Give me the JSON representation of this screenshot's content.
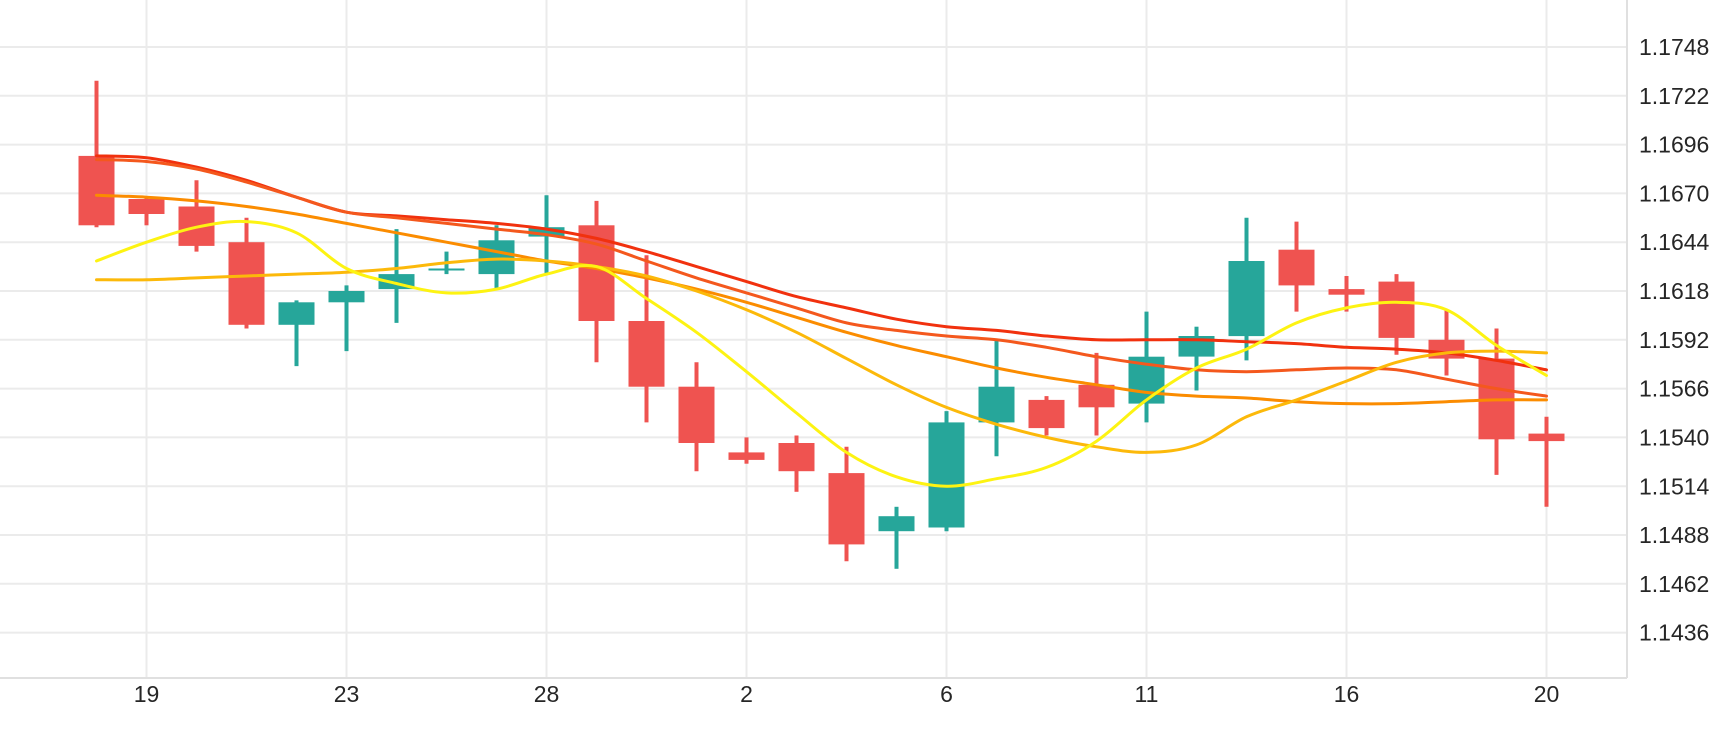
{
  "chart_data": {
    "type": "candlestick",
    "title": "",
    "xlabel": "",
    "ylabel": "",
    "grid": true,
    "legend": "none",
    "ylim": [
      1.1436,
      1.1748
    ],
    "y_axis": {
      "tick_labels": [
        "1.1748",
        "1.1722",
        "1.1696",
        "1.1670",
        "1.1644",
        "1.1618",
        "1.1592",
        "1.1566",
        "1.1540",
        "1.1514",
        "1.1488",
        "1.1462",
        "1.1436"
      ],
      "tick_prices": [
        1.1748,
        1.1722,
        1.1696,
        1.167,
        1.1644,
        1.1618,
        1.1592,
        1.1566,
        1.154,
        1.1514,
        1.1488,
        1.1462,
        1.1436
      ]
    },
    "x_axis": {
      "tick_labels": [
        "19",
        "23",
        "28",
        "2",
        "6",
        "11",
        "16",
        "20"
      ],
      "tick_candle_indices": [
        1,
        5,
        9,
        13,
        17,
        21,
        25,
        29
      ]
    },
    "candles_ohlc": [
      [
        1.169,
        1.173,
        1.1652,
        1.1653
      ],
      [
        1.1667,
        1.1668,
        1.1653,
        1.1659
      ],
      [
        1.1663,
        1.1677,
        1.1639,
        1.1642
      ],
      [
        1.1644,
        1.1657,
        1.1598,
        1.16
      ],
      [
        1.16,
        1.1613,
        1.1578,
        1.1612
      ],
      [
        1.1612,
        1.1621,
        1.1586,
        1.1618
      ],
      [
        1.1619,
        1.1651,
        1.1601,
        1.1627
      ],
      [
        1.163,
        1.1639,
        1.1627,
        1.163
      ],
      [
        1.1627,
        1.1653,
        1.1619,
        1.1645
      ],
      [
        1.1647,
        1.1669,
        1.1627,
        1.1652
      ],
      [
        1.1653,
        1.1666,
        1.158,
        1.1602
      ],
      [
        1.1602,
        1.1637,
        1.1548,
        1.1567
      ],
      [
        1.1567,
        1.158,
        1.1522,
        1.1537
      ],
      [
        1.1532,
        1.154,
        1.1526,
        1.1528
      ],
      [
        1.1537,
        1.1541,
        1.1511,
        1.1522
      ],
      [
        1.1521,
        1.1535,
        1.1474,
        1.1483
      ],
      [
        1.149,
        1.1503,
        1.147,
        1.1498
      ],
      [
        1.1492,
        1.1554,
        1.149,
        1.1548
      ],
      [
        1.1548,
        1.1592,
        1.153,
        1.1567
      ],
      [
        1.156,
        1.1562,
        1.1541,
        1.1545
      ],
      [
        1.1568,
        1.1585,
        1.1541,
        1.1556
      ],
      [
        1.1558,
        1.1607,
        1.1548,
        1.1583
      ],
      [
        1.1583,
        1.1599,
        1.1565,
        1.1594
      ],
      [
        1.1594,
        1.1657,
        1.1581,
        1.1634
      ],
      [
        1.164,
        1.1655,
        1.1607,
        1.1621
      ],
      [
        1.1619,
        1.1626,
        1.1607,
        1.1616
      ],
      [
        1.1623,
        1.1627,
        1.1584,
        1.1593
      ],
      [
        1.1592,
        1.1608,
        1.1573,
        1.1582
      ],
      [
        1.1582,
        1.1598,
        1.152,
        1.1539
      ],
      [
        1.1542,
        1.1551,
        1.1503,
        1.1538
      ]
    ],
    "moving_averages": [
      {
        "name": "ma-red-slow",
        "color": "#f1310e",
        "values": [
          1.169,
          1.1689,
          1.1684,
          1.1677,
          1.1668,
          1.166,
          1.1658,
          1.1656,
          1.1654,
          1.1651,
          1.1646,
          1.1639,
          1.1631,
          1.1623,
          1.1615,
          1.1609,
          1.1603,
          1.1599,
          1.1597,
          1.1594,
          1.1592,
          1.1592,
          1.1592,
          1.1591,
          1.159,
          1.1588,
          1.1587,
          1.1585,
          1.1581,
          1.1576
        ]
      },
      {
        "name": "ma-red-orange",
        "color": "#f4581d",
        "values": [
          1.1688,
          1.1687,
          1.1683,
          1.1676,
          1.1668,
          1.166,
          1.1657,
          1.1654,
          1.1651,
          1.1648,
          1.1643,
          1.1634,
          1.1625,
          1.1617,
          1.1609,
          1.1601,
          1.1597,
          1.1594,
          1.1592,
          1.1588,
          1.1583,
          1.1579,
          1.1576,
          1.1575,
          1.1576,
          1.1577,
          1.1576,
          1.1571,
          1.1566,
          1.1562
        ]
      },
      {
        "name": "ma-orange",
        "color": "#fb8c00",
        "values": [
          1.1669,
          1.1668,
          1.1666,
          1.1663,
          1.1659,
          1.1654,
          1.1649,
          1.1644,
          1.1639,
          1.1634,
          1.163,
          1.1625,
          1.1619,
          1.1612,
          1.1604,
          1.1596,
          1.1589,
          1.1583,
          1.1577,
          1.1572,
          1.1568,
          1.1564,
          1.1562,
          1.1561,
          1.1559,
          1.1558,
          1.1558,
          1.1559,
          1.156,
          1.156
        ]
      },
      {
        "name": "ma-amber",
        "color": "#fcb90a",
        "values": [
          1.1624,
          1.1624,
          1.1625,
          1.1626,
          1.1627,
          1.1628,
          1.163,
          1.1633,
          1.1635,
          1.1634,
          1.1631,
          1.1626,
          1.1618,
          1.1608,
          1.1596,
          1.1582,
          1.1568,
          1.1556,
          1.1547,
          1.154,
          1.1535,
          1.1532,
          1.1536,
          1.1551,
          1.156,
          1.157,
          1.158,
          1.1585,
          1.1586,
          1.1585
        ]
      },
      {
        "name": "ma-yellow-fast",
        "color": "#fdf312",
        "values": [
          1.1634,
          1.1644,
          1.1652,
          1.1655,
          1.1649,
          1.163,
          1.1622,
          1.1617,
          1.1619,
          1.1627,
          1.1631,
          1.1614,
          1.1596,
          1.1575,
          1.1553,
          1.1532,
          1.1519,
          1.1514,
          1.1518,
          1.1524,
          1.1538,
          1.156,
          1.1577,
          1.1587,
          1.1601,
          1.1609,
          1.1612,
          1.1608,
          1.1589,
          1.1573
        ]
      }
    ],
    "colors": {
      "up_candle": "#26a69a",
      "down_candle": "#ef5350",
      "grid": "#ebebeb",
      "axis_line": "#e0e0e0",
      "label": "#262626",
      "background": "#ffffff"
    }
  }
}
